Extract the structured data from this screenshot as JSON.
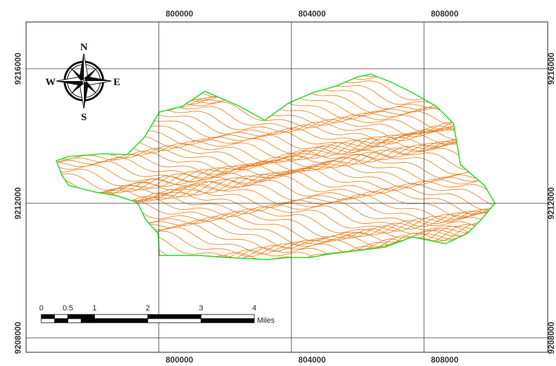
{
  "map": {
    "grid": {
      "x_labels": [
        800000,
        804000,
        808000
      ],
      "y_labels": [
        9216000,
        9212000,
        9208000
      ]
    },
    "compass": {
      "north": "N",
      "south": "S",
      "east": "E",
      "west": "W"
    },
    "scale_bar": {
      "labels": [
        0,
        0.5,
        1,
        2,
        3,
        4
      ],
      "unit": "Miles"
    }
  }
}
